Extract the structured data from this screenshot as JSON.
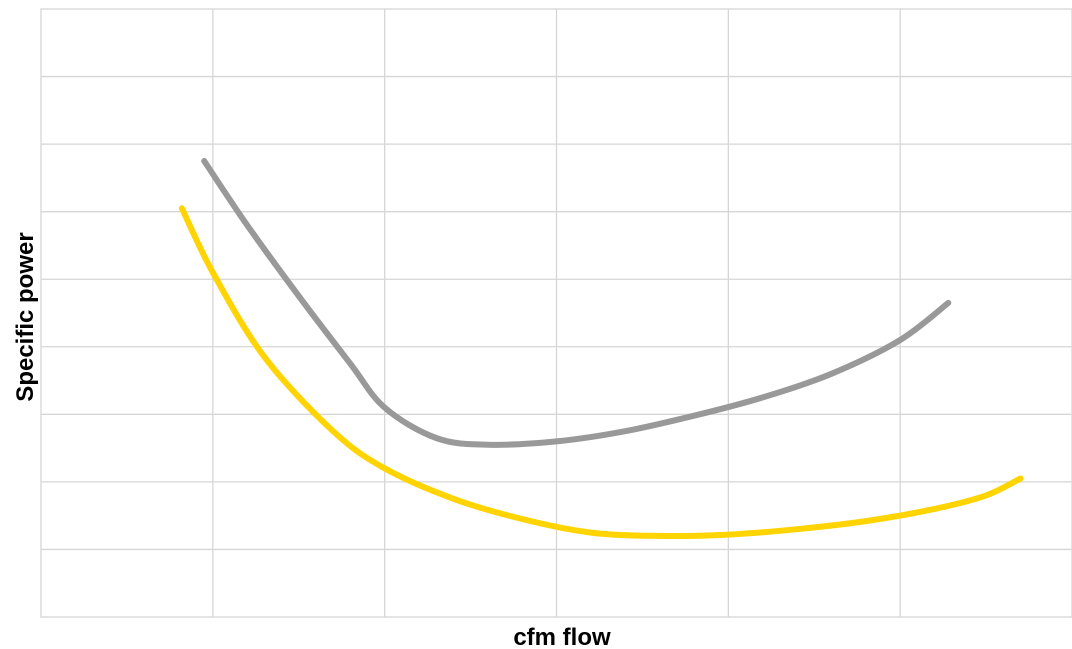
{
  "chart_data": {
    "type": "line",
    "title": "",
    "xlabel": "cfm flow",
    "ylabel": "Specific power",
    "xlim": [
      0,
      6
    ],
    "ylim": [
      0,
      9
    ],
    "grid": true,
    "x_gridlines": [
      1,
      2,
      3,
      4,
      5
    ],
    "y_gridlines": [
      1,
      2,
      3,
      4,
      5,
      6,
      7,
      8
    ],
    "series": [
      {
        "color": "#999999",
        "x": [
          0.95,
          1.2,
          1.5,
          1.8,
          2.0,
          2.3,
          2.6,
          3.0,
          3.4,
          3.8,
          4.2,
          4.6,
          5.0,
          5.28
        ],
        "y": [
          6.75,
          5.8,
          4.75,
          3.75,
          3.1,
          2.65,
          2.55,
          2.6,
          2.75,
          2.98,
          3.25,
          3.6,
          4.1,
          4.65
        ]
      },
      {
        "color": "#ffd400",
        "x": [
          0.82,
          1.0,
          1.3,
          1.7,
          2.0,
          2.4,
          2.8,
          3.2,
          3.6,
          4.0,
          4.4,
          4.8,
          5.2,
          5.5,
          5.7
        ],
        "y": [
          6.05,
          5.1,
          3.85,
          2.75,
          2.2,
          1.75,
          1.45,
          1.25,
          1.2,
          1.22,
          1.3,
          1.42,
          1.6,
          1.8,
          2.05
        ]
      }
    ]
  }
}
